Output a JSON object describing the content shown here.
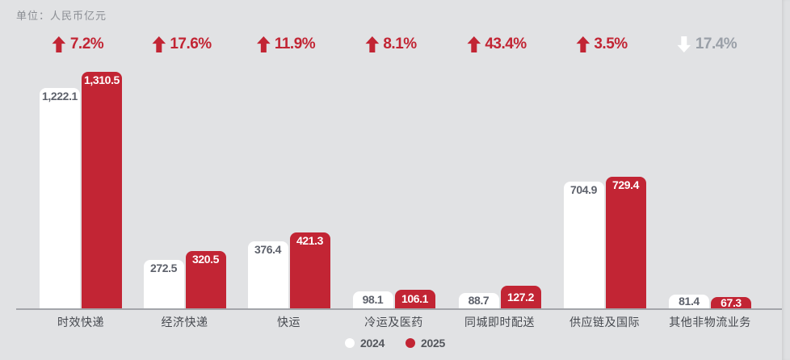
{
  "unit_label": "单位：人民币亿元",
  "colors": {
    "background": "#e1e2e4",
    "bar_2024": "#ffffff",
    "bar_2025": "#c22534",
    "accent_red": "#c22534",
    "value_text_on_white": "#5d616b",
    "value_text_on_red": "#ffffff",
    "category_text": "#46494f",
    "unit_text": "#8b8e94",
    "axis_line": "#a3a5aa",
    "down_percent_text": "#9aa0a8",
    "down_arrow": "#ffffff"
  },
  "legend": {
    "items": [
      {
        "label": "2024",
        "color": "#ffffff"
      },
      {
        "label": "2025",
        "color": "#c22534"
      }
    ]
  },
  "chart_data": {
    "type": "bar",
    "title": "",
    "unit": "人民币亿元",
    "categories": [
      "时效快递",
      "经济快递",
      "快运",
      "冷运及医药",
      "同城即时配送",
      "供应链及国际",
      "其他非物流业务"
    ],
    "series": [
      {
        "name": "2024",
        "color": "#ffffff",
        "values": [
          1222.1,
          272.5,
          376.4,
          98.1,
          88.7,
          704.9,
          81.4
        ],
        "labels": [
          "1,222.1",
          "272.5",
          "376.4",
          "98.1",
          "88.7",
          "704.9",
          "81.4"
        ]
      },
      {
        "name": "2025",
        "color": "#c22534",
        "values": [
          1310.5,
          320.5,
          421.3,
          106.1,
          127.2,
          729.4,
          67.3
        ],
        "labels": [
          "1,310.5",
          "320.5",
          "421.3",
          "106.1",
          "127.2",
          "729.4",
          "67.3"
        ]
      }
    ],
    "change_percent": [
      {
        "label": "7.2%",
        "direction": "up"
      },
      {
        "label": "17.6%",
        "direction": "up"
      },
      {
        "label": "11.9%",
        "direction": "up"
      },
      {
        "label": "8.1%",
        "direction": "up"
      },
      {
        "label": "43.4%",
        "direction": "up"
      },
      {
        "label": "3.5%",
        "direction": "up"
      },
      {
        "label": "17.4%",
        "direction": "down"
      }
    ],
    "ylim": [
      0,
      1400
    ],
    "grid": false,
    "legend_position": "bottom"
  }
}
